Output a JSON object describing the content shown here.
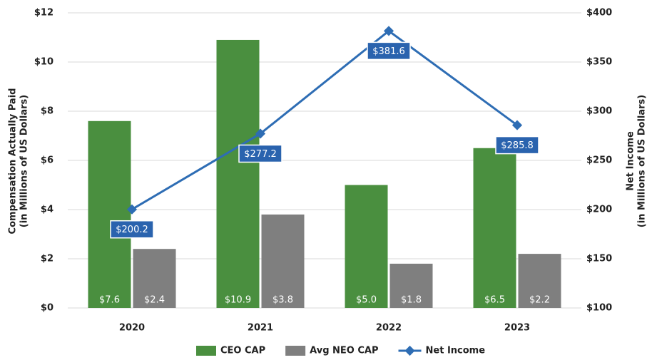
{
  "chart_data": {
    "type": "bar",
    "categories": [
      "2020",
      "2021",
      "2022",
      "2023"
    ],
    "series": [
      {
        "name": "CEO CAP",
        "color": "#4a8f3f",
        "values": [
          7.6,
          10.9,
          5.0,
          6.5
        ],
        "value_labels": [
          "$7.6",
          "$10.9",
          "$5.0",
          "$6.5"
        ]
      },
      {
        "name": "Avg NEO CAP",
        "color": "#7f7f7f",
        "values": [
          2.4,
          3.8,
          1.8,
          2.2
        ],
        "value_labels": [
          "$2.4",
          "$3.8",
          "$1.8",
          "$2.2"
        ]
      },
      {
        "name": "Net Income",
        "type": "line",
        "axis": "y2",
        "color": "#2e6db4",
        "values": [
          200.2,
          277.2,
          381.6,
          285.8
        ],
        "value_labels": [
          "$200.2",
          "$277.2",
          "$381.6",
          "$285.8"
        ]
      }
    ],
    "ylabel": [
      "Compensation Actually Paid",
      "(in Millions of US Dollars)"
    ],
    "y2label": [
      "Net Income",
      "(in Millions of US Dollars)"
    ],
    "ylim": [
      0,
      12
    ],
    "yticks": [
      {
        "value": 0,
        "label": "$0"
      },
      {
        "value": 2,
        "label": "$2"
      },
      {
        "value": 4,
        "label": "$4"
      },
      {
        "value": 6,
        "label": "$6"
      },
      {
        "value": 8,
        "label": "$8"
      },
      {
        "value": 10,
        "label": "$10"
      },
      {
        "value": 12,
        "label": "$12"
      }
    ],
    "y2lim": [
      100,
      400
    ],
    "y2ticks": [
      {
        "value": 100,
        "label": "$100"
      },
      {
        "value": 150,
        "label": "$150"
      },
      {
        "value": 200,
        "label": "$200"
      },
      {
        "value": 250,
        "label": "$250"
      },
      {
        "value": 300,
        "label": "$300"
      },
      {
        "value": 350,
        "label": "$350"
      },
      {
        "value": 400,
        "label": "$400"
      }
    ],
    "grid": true,
    "legend": "bottom"
  }
}
